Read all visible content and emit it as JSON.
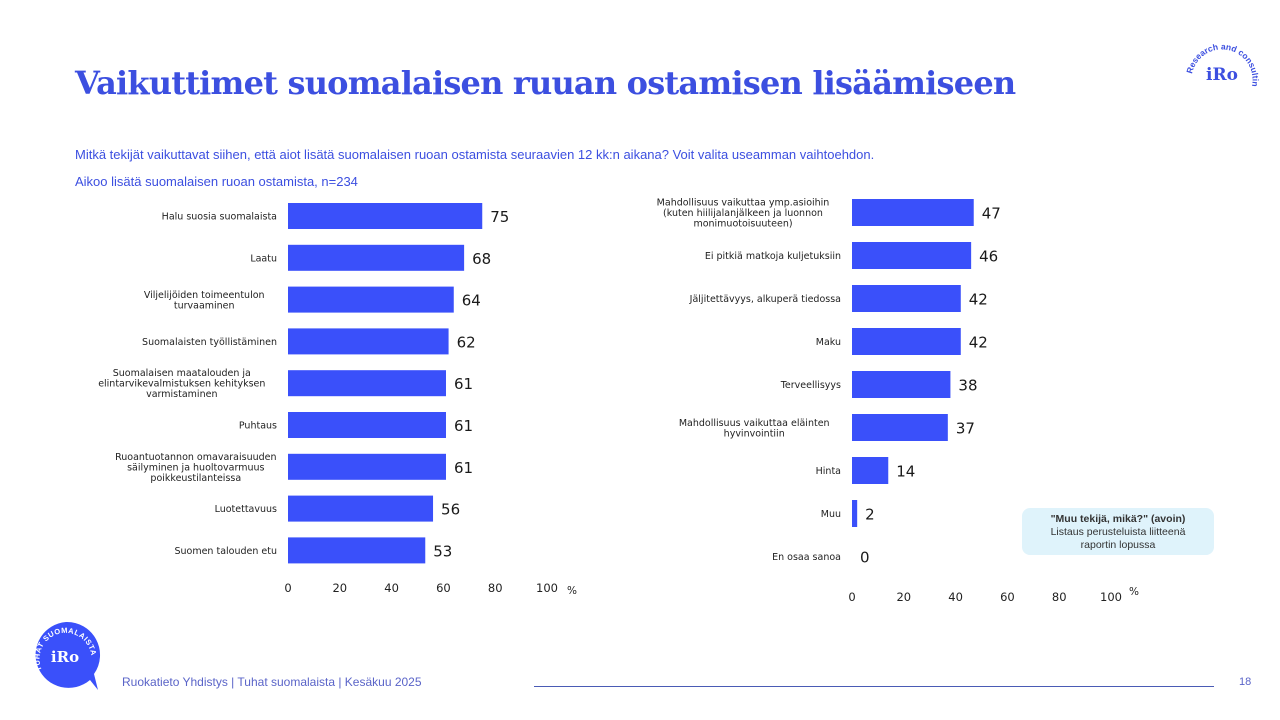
{
  "header": {
    "title": "Vaikuttimet suomalaisen ruuan ostamisen lisäämiseen",
    "question": "Mitkä tekijät vaikuttavat siihen, että aiot lisätä suomalaisen ruoan ostamista seuraavien 12 kk:n aikana? Voit valita useamman vaihtoehdon.",
    "subset": "Aikoo lisätä suomalaisen ruoan ostamista, n=234"
  },
  "logo_top": {
    "text": "iRo",
    "ring_text": "Research and consulting",
    "icon": "iro-logo-icon"
  },
  "logo_bottom": {
    "text": "iRo",
    "ring_text": "TUHAT SUOMALAISTA",
    "icon": "tuhat-suomalaista-badge-icon"
  },
  "note": {
    "bold": "\"Muu tekijä, mikä?\" (avoin)",
    "line1": "Listaus perusteluista liitteenä",
    "line2": "raportin lopussa"
  },
  "footer": {
    "text": "Ruokatieto Yhdistys | Tuhat suomalaista | Kesäkuu 2025",
    "page": "18"
  },
  "colors": {
    "accent": "#3c4fe0",
    "bar": "#3a50fa",
    "note_bg": "#dff3fb"
  },
  "chart_data": [
    {
      "type": "bar",
      "orientation": "horizontal",
      "title": "",
      "xlabel": "%",
      "xlim": [
        0,
        100
      ],
      "xticks": [
        "0",
        "20",
        "40",
        "60",
        "80",
        "100"
      ],
      "categories": [
        [
          "Halu suosia suomalaista"
        ],
        [
          "Laatu"
        ],
        [
          "Viljelijöiden toimeentulon",
          "turvaaminen"
        ],
        [
          "Suomalaisten työllistäminen"
        ],
        [
          "Suomalaisen maatalouden ja",
          "elintarvikevalmistuksen kehityksen",
          "varmistaminen"
        ],
        [
          "Puhtaus"
        ],
        [
          "Ruoantuotannon omavaraisuuden",
          "säilyminen ja huoltovarmuus",
          "poikkeustilanteissa"
        ],
        [
          "Luotettavuus"
        ],
        [
          "Suomen talouden etu"
        ]
      ],
      "values": [
        75,
        68,
        64,
        62,
        61,
        61,
        61,
        56,
        53
      ],
      "grid": false,
      "legend": "none"
    },
    {
      "type": "bar",
      "orientation": "horizontal",
      "title": "",
      "xlabel": "%",
      "xlim": [
        0,
        100
      ],
      "xticks": [
        "0",
        "20",
        "40",
        "60",
        "80",
        "100"
      ],
      "categories": [
        [
          "Mahdollisuus vaikuttaa ymp.asioihin",
          "(kuten hiilijalanjälkeen ja luonnon",
          "monimuotoisuuteen)"
        ],
        [
          "Ei pitkiä matkoja kuljetuksiin"
        ],
        [
          "Jäljitettävyys, alkuperä tiedossa"
        ],
        [
          "Maku"
        ],
        [
          "Terveellisyys"
        ],
        [
          "Mahdollisuus vaikuttaa eläinten",
          "hyvinvointiin"
        ],
        [
          "Hinta"
        ],
        [
          "Muu"
        ],
        [
          "En osaa sanoa"
        ]
      ],
      "values": [
        47,
        46,
        42,
        42,
        38,
        37,
        14,
        2,
        0
      ],
      "grid": false,
      "legend": "none"
    }
  ]
}
